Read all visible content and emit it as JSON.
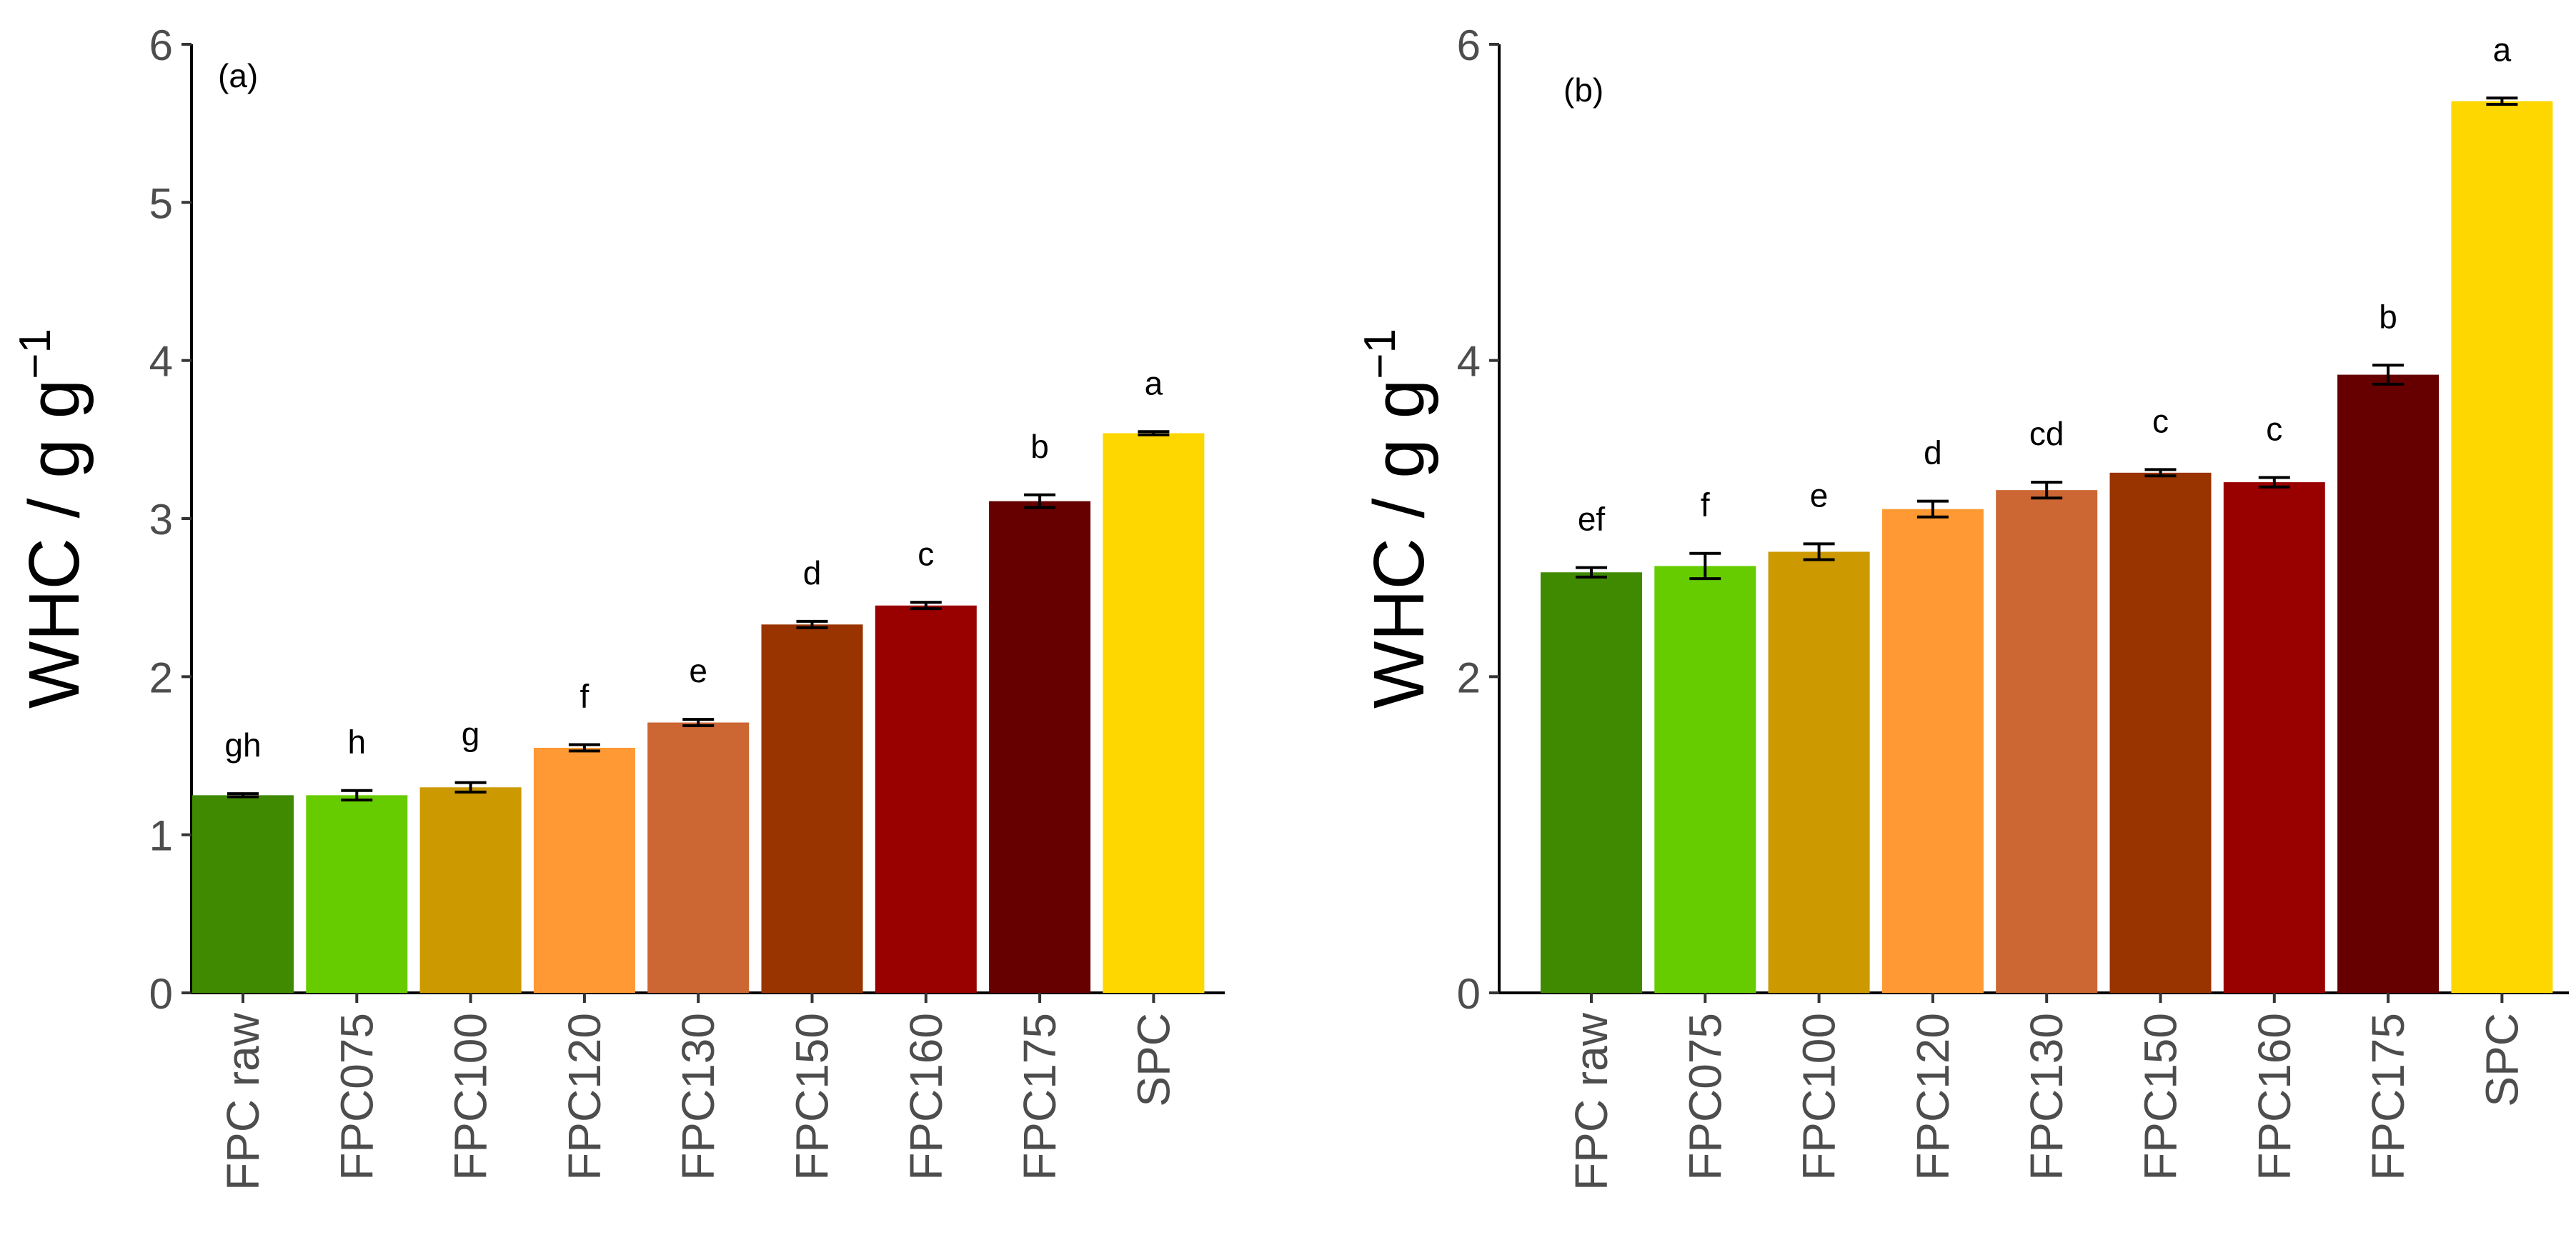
{
  "chart_data": [
    {
      "type": "bar",
      "panel_label": "(a)",
      "categories": [
        "FPC raw",
        "FPC075",
        "FPC100",
        "FPC120",
        "FPC130",
        "FPC150",
        "FPC160",
        "FPC175",
        "SPC"
      ],
      "values": [
        1.25,
        1.25,
        1.3,
        1.55,
        1.71,
        2.33,
        2.45,
        3.11,
        3.54
      ],
      "errors": [
        0.01,
        0.03,
        0.03,
        0.02,
        0.02,
        0.02,
        0.02,
        0.04,
        0.01
      ],
      "significance": [
        "gh",
        "h",
        "g",
        "f",
        "e",
        "d",
        "c",
        "b",
        "a"
      ],
      "colors": [
        "#3f8a00",
        "#66cc00",
        "#cc9900",
        "#ff9933",
        "#cc6633",
        "#993300",
        "#990000",
        "#660000",
        "#ffd700"
      ],
      "ylabel": "WHC / g g",
      "ylabel_sup": "−1",
      "xlabel": "",
      "ylim": [
        0,
        6
      ],
      "yticks": [
        0,
        1,
        2,
        3,
        4,
        5,
        6
      ],
      "grid": false
    },
    {
      "type": "bar",
      "panel_label": "(b)",
      "categories": [
        "FPC raw",
        "FPC075",
        "FPC100",
        "FPC120",
        "FPC130",
        "FPC150",
        "FPC160",
        "FPC175",
        "SPC"
      ],
      "values": [
        2.66,
        2.7,
        2.79,
        3.06,
        3.18,
        3.29,
        3.23,
        3.91,
        5.64
      ],
      "errors": [
        0.03,
        0.08,
        0.05,
        0.05,
        0.05,
        0.02,
        0.03,
        0.06,
        0.02
      ],
      "significance": [
        "ef",
        "f",
        "e",
        "d",
        "cd",
        "c",
        "c",
        "b",
        "a"
      ],
      "colors": [
        "#3f8a00",
        "#66cc00",
        "#cc9900",
        "#ff9933",
        "#cc6633",
        "#993300",
        "#990000",
        "#660000",
        "#ffd700"
      ],
      "ylabel": "WHC / g g",
      "ylabel_sup": "−1",
      "xlabel": "",
      "ylim": [
        0,
        6
      ],
      "yticks": [
        0,
        2,
        4,
        6
      ],
      "grid": false
    }
  ]
}
